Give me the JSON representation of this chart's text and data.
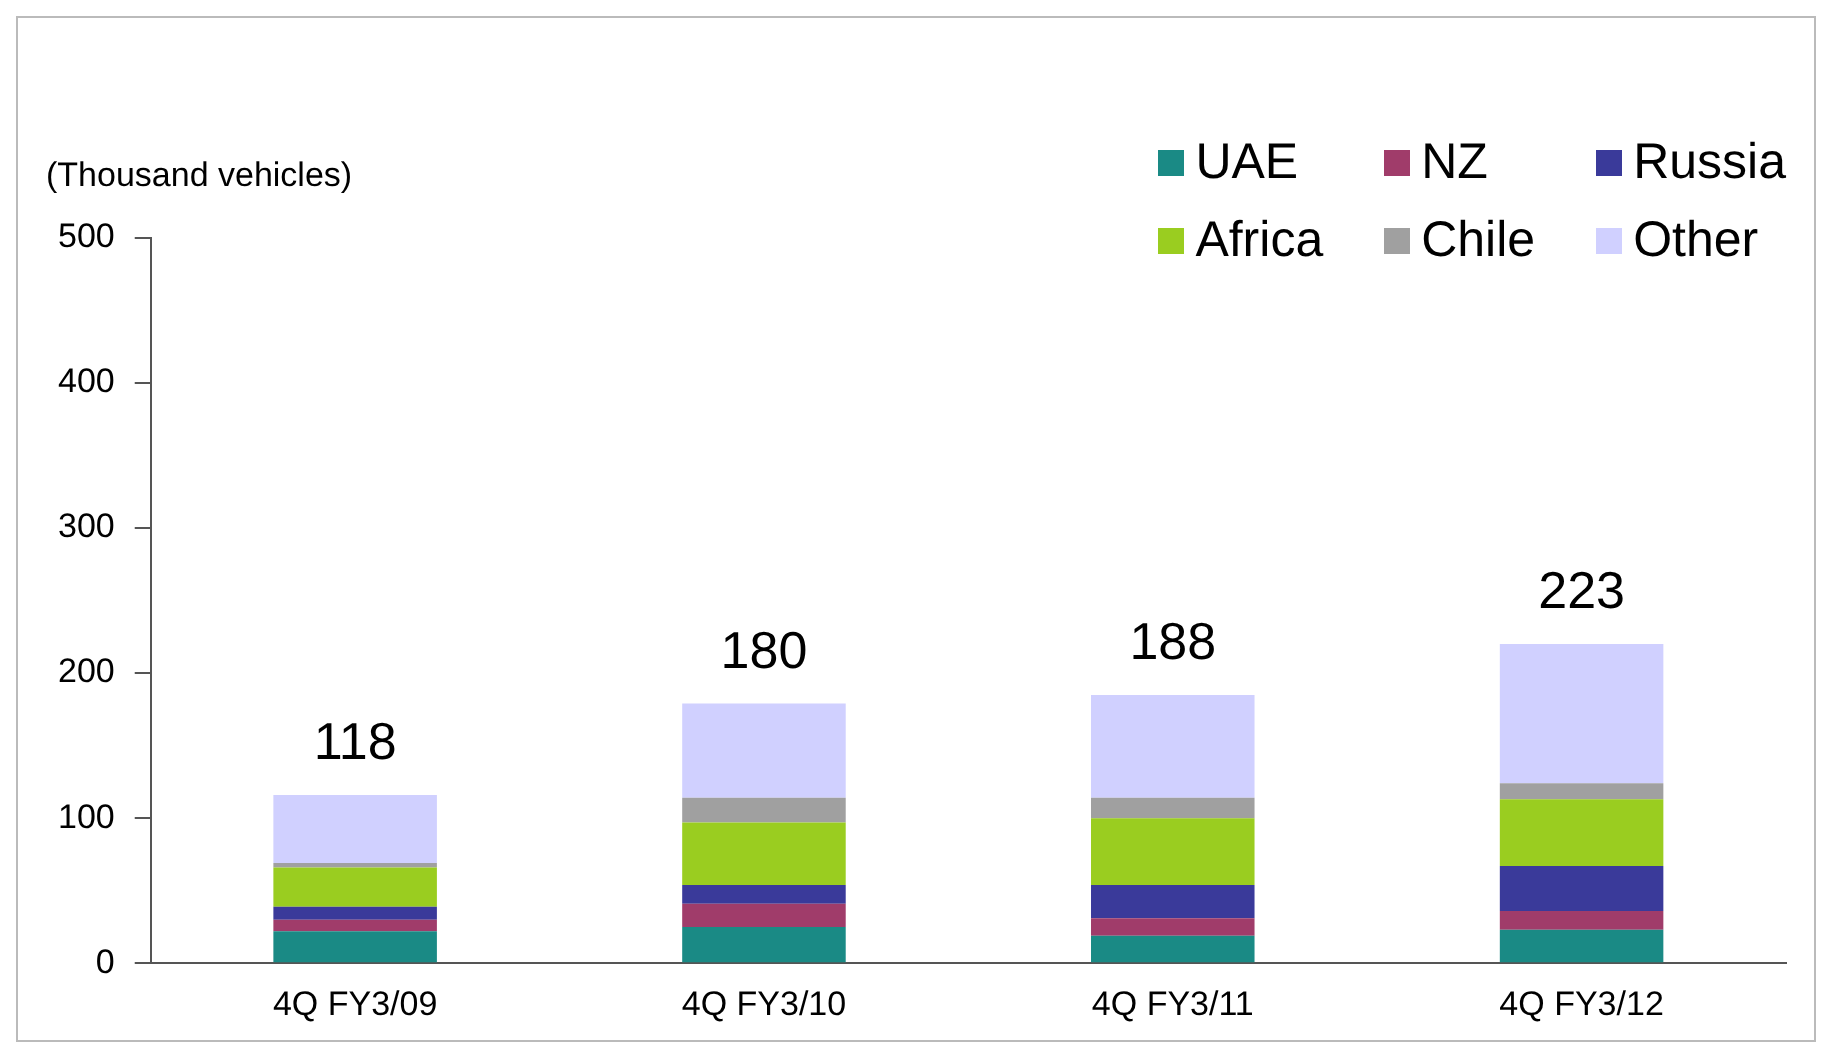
{
  "chart_data": {
    "type": "bar",
    "stacked": true,
    "ylabel": "(Thousand vehicles)",
    "categories": [
      "4Q FY3/09",
      "4Q FY3/10",
      "4Q FY3/11",
      "4Q FY3/12"
    ],
    "series": [
      {
        "name": "UAE",
        "color": "#1a8a85",
        "values": [
          22,
          25,
          19,
          23
        ]
      },
      {
        "name": "NZ",
        "color": "#a03c6a",
        "values": [
          8,
          16,
          12,
          13
        ]
      },
      {
        "name": "Russia",
        "color": "#3a3a9a",
        "values": [
          9,
          13,
          23,
          31
        ]
      },
      {
        "name": "Africa",
        "color": "#9acd20",
        "values": [
          27,
          43,
          46,
          46
        ]
      },
      {
        "name": "Chile",
        "color": "#a0a0a0",
        "values": [
          3,
          17,
          14,
          11
        ]
      },
      {
        "name": "Other",
        "color": "#d0d0ff",
        "values": [
          47,
          65,
          71,
          96
        ]
      }
    ],
    "totals": [
      "118",
      "180",
      "188",
      "223"
    ],
    "ylim": [
      0,
      500
    ],
    "yticks": [
      0,
      100,
      200,
      300,
      400,
      500
    ],
    "grid": false,
    "legend": "top right"
  }
}
